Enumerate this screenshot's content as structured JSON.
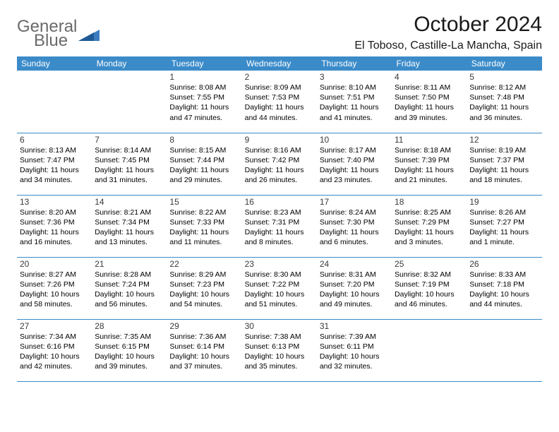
{
  "logo": {
    "line1": "General",
    "line2": "Blue"
  },
  "title": "October 2024",
  "location": "El Toboso, Castille-La Mancha, Spain",
  "header_bg": "#3b8bc9",
  "header_fg": "#ffffff",
  "border_color": "#3b8bc9",
  "days_of_week": [
    "Sunday",
    "Monday",
    "Tuesday",
    "Wednesday",
    "Thursday",
    "Friday",
    "Saturday"
  ],
  "weeks": [
    [
      null,
      null,
      {
        "n": "1",
        "sunrise": "8:08 AM",
        "sunset": "7:55 PM",
        "daylight": "11 hours and 47 minutes."
      },
      {
        "n": "2",
        "sunrise": "8:09 AM",
        "sunset": "7:53 PM",
        "daylight": "11 hours and 44 minutes."
      },
      {
        "n": "3",
        "sunrise": "8:10 AM",
        "sunset": "7:51 PM",
        "daylight": "11 hours and 41 minutes."
      },
      {
        "n": "4",
        "sunrise": "8:11 AM",
        "sunset": "7:50 PM",
        "daylight": "11 hours and 39 minutes."
      },
      {
        "n": "5",
        "sunrise": "8:12 AM",
        "sunset": "7:48 PM",
        "daylight": "11 hours and 36 minutes."
      }
    ],
    [
      {
        "n": "6",
        "sunrise": "8:13 AM",
        "sunset": "7:47 PM",
        "daylight": "11 hours and 34 minutes."
      },
      {
        "n": "7",
        "sunrise": "8:14 AM",
        "sunset": "7:45 PM",
        "daylight": "11 hours and 31 minutes."
      },
      {
        "n": "8",
        "sunrise": "8:15 AM",
        "sunset": "7:44 PM",
        "daylight": "11 hours and 29 minutes."
      },
      {
        "n": "9",
        "sunrise": "8:16 AM",
        "sunset": "7:42 PM",
        "daylight": "11 hours and 26 minutes."
      },
      {
        "n": "10",
        "sunrise": "8:17 AM",
        "sunset": "7:40 PM",
        "daylight": "11 hours and 23 minutes."
      },
      {
        "n": "11",
        "sunrise": "8:18 AM",
        "sunset": "7:39 PM",
        "daylight": "11 hours and 21 minutes."
      },
      {
        "n": "12",
        "sunrise": "8:19 AM",
        "sunset": "7:37 PM",
        "daylight": "11 hours and 18 minutes."
      }
    ],
    [
      {
        "n": "13",
        "sunrise": "8:20 AM",
        "sunset": "7:36 PM",
        "daylight": "11 hours and 16 minutes."
      },
      {
        "n": "14",
        "sunrise": "8:21 AM",
        "sunset": "7:34 PM",
        "daylight": "11 hours and 13 minutes."
      },
      {
        "n": "15",
        "sunrise": "8:22 AM",
        "sunset": "7:33 PM",
        "daylight": "11 hours and 11 minutes."
      },
      {
        "n": "16",
        "sunrise": "8:23 AM",
        "sunset": "7:31 PM",
        "daylight": "11 hours and 8 minutes."
      },
      {
        "n": "17",
        "sunrise": "8:24 AM",
        "sunset": "7:30 PM",
        "daylight": "11 hours and 6 minutes."
      },
      {
        "n": "18",
        "sunrise": "8:25 AM",
        "sunset": "7:29 PM",
        "daylight": "11 hours and 3 minutes."
      },
      {
        "n": "19",
        "sunrise": "8:26 AM",
        "sunset": "7:27 PM",
        "daylight": "11 hours and 1 minute."
      }
    ],
    [
      {
        "n": "20",
        "sunrise": "8:27 AM",
        "sunset": "7:26 PM",
        "daylight": "10 hours and 58 minutes."
      },
      {
        "n": "21",
        "sunrise": "8:28 AM",
        "sunset": "7:24 PM",
        "daylight": "10 hours and 56 minutes."
      },
      {
        "n": "22",
        "sunrise": "8:29 AM",
        "sunset": "7:23 PM",
        "daylight": "10 hours and 54 minutes."
      },
      {
        "n": "23",
        "sunrise": "8:30 AM",
        "sunset": "7:22 PM",
        "daylight": "10 hours and 51 minutes."
      },
      {
        "n": "24",
        "sunrise": "8:31 AM",
        "sunset": "7:20 PM",
        "daylight": "10 hours and 49 minutes."
      },
      {
        "n": "25",
        "sunrise": "8:32 AM",
        "sunset": "7:19 PM",
        "daylight": "10 hours and 46 minutes."
      },
      {
        "n": "26",
        "sunrise": "8:33 AM",
        "sunset": "7:18 PM",
        "daylight": "10 hours and 44 minutes."
      }
    ],
    [
      {
        "n": "27",
        "sunrise": "7:34 AM",
        "sunset": "6:16 PM",
        "daylight": "10 hours and 42 minutes."
      },
      {
        "n": "28",
        "sunrise": "7:35 AM",
        "sunset": "6:15 PM",
        "daylight": "10 hours and 39 minutes."
      },
      {
        "n": "29",
        "sunrise": "7:36 AM",
        "sunset": "6:14 PM",
        "daylight": "10 hours and 37 minutes."
      },
      {
        "n": "30",
        "sunrise": "7:38 AM",
        "sunset": "6:13 PM",
        "daylight": "10 hours and 35 minutes."
      },
      {
        "n": "31",
        "sunrise": "7:39 AM",
        "sunset": "6:11 PM",
        "daylight": "10 hours and 32 minutes."
      },
      null,
      null
    ]
  ],
  "labels": {
    "sunrise": "Sunrise:",
    "sunset": "Sunset:",
    "daylight": "Daylight:"
  }
}
